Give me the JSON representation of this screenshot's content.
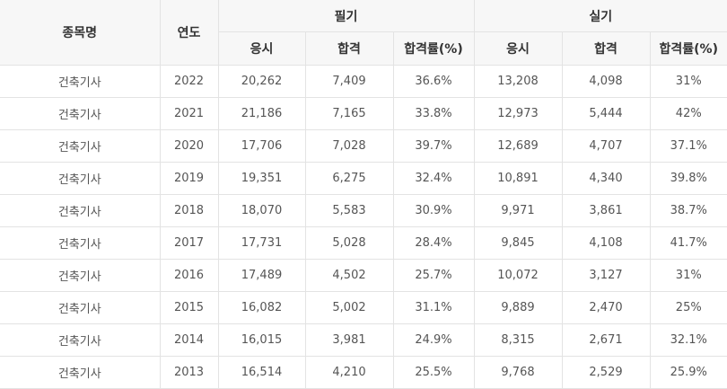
{
  "table": {
    "headers": {
      "name": "종목명",
      "year": "연도",
      "written": "필기",
      "practical": "실기",
      "sub": [
        "응시",
        "합격",
        "합격률(%)",
        "응시",
        "합격",
        "합격률(%)"
      ]
    },
    "rows": [
      [
        "건축기사",
        "2022",
        "20,262",
        "7,409",
        "36.6%",
        "13,208",
        "4,098",
        "31%"
      ],
      [
        "건축기사",
        "2021",
        "21,186",
        "7,165",
        "33.8%",
        "12,973",
        "5,444",
        "42%"
      ],
      [
        "건축기사",
        "2020",
        "17,706",
        "7,028",
        "39.7%",
        "12,689",
        "4,707",
        "37.1%"
      ],
      [
        "건축기사",
        "2019",
        "19,351",
        "6,275",
        "32.4%",
        "10,891",
        "4,340",
        "39.8%"
      ],
      [
        "건축기사",
        "2018",
        "18,070",
        "5,583",
        "30.9%",
        "9,971",
        "3,861",
        "38.7%"
      ],
      [
        "건축기사",
        "2017",
        "17,731",
        "5,028",
        "28.4%",
        "9,845",
        "4,108",
        "41.7%"
      ],
      [
        "건축기사",
        "2016",
        "17,489",
        "4,502",
        "25.7%",
        "10,072",
        "3,127",
        "31%"
      ],
      [
        "건축기사",
        "2015",
        "16,082",
        "5,002",
        "31.1%",
        "9,889",
        "2,470",
        "25%"
      ],
      [
        "건축기사",
        "2014",
        "16,015",
        "3,981",
        "24.9%",
        "8,315",
        "2,671",
        "32.1%"
      ],
      [
        "건축기사",
        "2013",
        "16,514",
        "4,210",
        "25.5%",
        "9,768",
        "2,529",
        "25.9%"
      ]
    ]
  }
}
